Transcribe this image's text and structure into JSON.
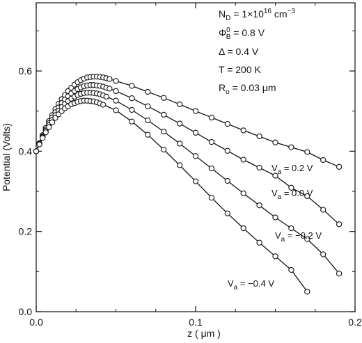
{
  "chart_data": {
    "type": "line",
    "title": "",
    "xlabel": "z ( μm )",
    "ylabel": "Potential (Volts)",
    "xlim": [
      0,
      0.2
    ],
    "ylim": [
      0,
      0.77
    ],
    "x_ticks": [
      {
        "value": 0.0,
        "label": "0.0"
      },
      {
        "value": 0.1,
        "label": "0.1"
      },
      {
        "value": 0.2,
        "label": "0.2"
      }
    ],
    "y_ticks": [
      {
        "value": 0.0,
        "label": "0.0"
      },
      {
        "value": 0.2,
        "label": "0.2"
      },
      {
        "value": 0.4,
        "label": "0.4"
      },
      {
        "value": 0.6,
        "label": "0.6"
      }
    ],
    "grid": false,
    "marker": "open-circle",
    "parameters": [
      {
        "name": "N",
        "sub": "D",
        "text": " = 1×10",
        "sup": "16",
        "unit": " cm",
        "unit_sup": "−3"
      },
      {
        "name": "Φ",
        "sub": "B",
        "sup": "0",
        "text": " = 0.8 V"
      },
      {
        "name": "Δ",
        "text": " = 0.4 V"
      },
      {
        "name": "T",
        "text": " = 200 K"
      },
      {
        "name": "R",
        "sub": "o",
        "text": " = 0.03 μm"
      }
    ],
    "series": [
      {
        "label_main": "V",
        "label_sub": "a",
        "label_rest": " = 0.2 V",
        "x": [
          0.0,
          0.002,
          0.004,
          0.006,
          0.008,
          0.01,
          0.012,
          0.014,
          0.016,
          0.018,
          0.02,
          0.022,
          0.024,
          0.026,
          0.028,
          0.03,
          0.032,
          0.034,
          0.036,
          0.038,
          0.04,
          0.042,
          0.044,
          0.046,
          0.05,
          0.06,
          0.07,
          0.08,
          0.09,
          0.1,
          0.11,
          0.12,
          0.13,
          0.14,
          0.15,
          0.16,
          0.17,
          0.18,
          0.19
        ],
        "y": [
          0.4,
          0.42,
          0.44,
          0.458,
          0.475,
          0.49,
          0.505,
          0.518,
          0.53,
          0.54,
          0.55,
          0.558,
          0.566,
          0.572,
          0.577,
          0.581,
          0.584,
          0.585,
          0.586,
          0.586,
          0.585,
          0.584,
          0.582,
          0.58,
          0.575,
          0.563,
          0.548,
          0.533,
          0.517,
          0.5,
          0.484,
          0.468,
          0.452,
          0.437,
          0.422,
          0.41,
          0.398,
          0.378,
          0.361
        ]
      },
      {
        "label_main": "V",
        "label_sub": "a",
        "label_rest": " = 0.0 V",
        "x": [
          0.0,
          0.002,
          0.004,
          0.006,
          0.008,
          0.01,
          0.012,
          0.014,
          0.016,
          0.018,
          0.02,
          0.022,
          0.024,
          0.026,
          0.028,
          0.03,
          0.032,
          0.034,
          0.036,
          0.038,
          0.04,
          0.042,
          0.044,
          0.046,
          0.05,
          0.06,
          0.07,
          0.08,
          0.09,
          0.1,
          0.11,
          0.12,
          0.13,
          0.14,
          0.15,
          0.16,
          0.17,
          0.18,
          0.19
        ],
        "y": [
          0.4,
          0.419,
          0.437,
          0.454,
          0.47,
          0.484,
          0.497,
          0.509,
          0.52,
          0.529,
          0.537,
          0.544,
          0.55,
          0.555,
          0.559,
          0.562,
          0.564,
          0.565,
          0.565,
          0.564,
          0.563,
          0.561,
          0.558,
          0.556,
          0.55,
          0.532,
          0.512,
          0.491,
          0.469,
          0.446,
          0.423,
          0.401,
          0.379,
          0.359,
          0.339,
          0.309,
          0.288,
          0.254,
          0.218
        ]
      },
      {
        "label_main": "V",
        "label_sub": "a",
        "label_rest": " = −0.2 V",
        "x": [
          0.0,
          0.002,
          0.004,
          0.006,
          0.008,
          0.01,
          0.012,
          0.014,
          0.016,
          0.018,
          0.02,
          0.022,
          0.024,
          0.026,
          0.028,
          0.03,
          0.032,
          0.034,
          0.036,
          0.038,
          0.04,
          0.042,
          0.044,
          0.05,
          0.06,
          0.07,
          0.08,
          0.09,
          0.1,
          0.11,
          0.12,
          0.13,
          0.14,
          0.15,
          0.16,
          0.17,
          0.18,
          0.19
        ],
        "y": [
          0.4,
          0.418,
          0.435,
          0.451,
          0.465,
          0.478,
          0.49,
          0.501,
          0.51,
          0.518,
          0.525,
          0.531,
          0.536,
          0.54,
          0.543,
          0.545,
          0.546,
          0.546,
          0.545,
          0.544,
          0.542,
          0.539,
          0.536,
          0.526,
          0.503,
          0.477,
          0.449,
          0.419,
          0.388,
          0.357,
          0.326,
          0.295,
          0.265,
          0.235,
          0.208,
          0.181,
          0.143,
          0.095
        ]
      },
      {
        "label_main": "V",
        "label_sub": "a",
        "label_rest": " = −0.4 V",
        "x": [
          0.0,
          0.002,
          0.004,
          0.006,
          0.008,
          0.01,
          0.012,
          0.014,
          0.016,
          0.018,
          0.02,
          0.022,
          0.024,
          0.026,
          0.028,
          0.03,
          0.032,
          0.034,
          0.036,
          0.038,
          0.04,
          0.042,
          0.05,
          0.06,
          0.07,
          0.08,
          0.09,
          0.1,
          0.11,
          0.12,
          0.13,
          0.14,
          0.15,
          0.16,
          0.17
        ],
        "y": [
          0.4,
          0.417,
          0.433,
          0.447,
          0.46,
          0.472,
          0.483,
          0.492,
          0.5,
          0.507,
          0.512,
          0.517,
          0.52,
          0.523,
          0.525,
          0.526,
          0.526,
          0.525,
          0.524,
          0.522,
          0.519,
          0.516,
          0.502,
          0.474,
          0.441,
          0.404,
          0.365,
          0.325,
          0.284,
          0.245,
          0.208,
          0.172,
          0.138,
          0.104,
          0.05
        ]
      }
    ]
  }
}
